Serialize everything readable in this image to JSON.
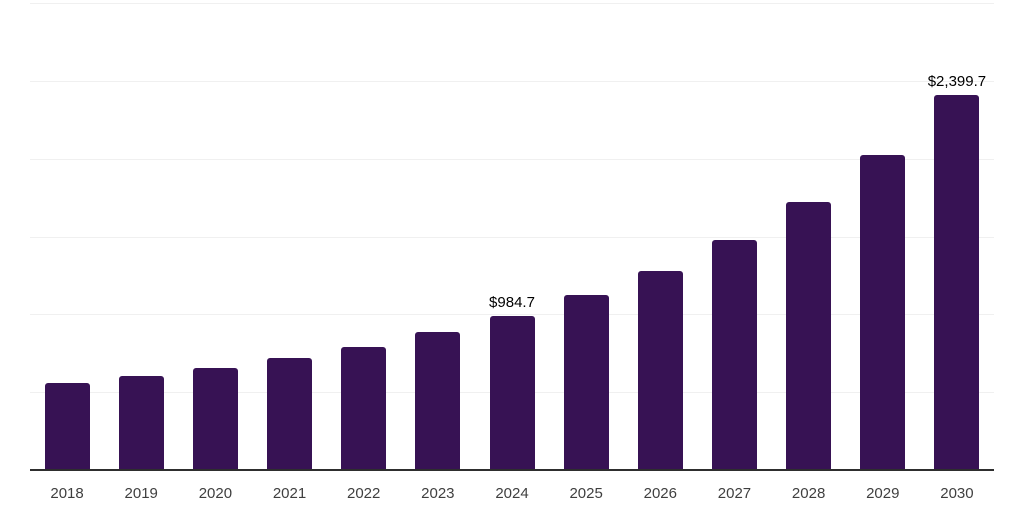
{
  "chart_data": {
    "type": "bar",
    "title": "",
    "xlabel": "",
    "ylabel": "",
    "categories": [
      "2018",
      "2019",
      "2020",
      "2021",
      "2022",
      "2023",
      "2024",
      "2025",
      "2026",
      "2027",
      "2028",
      "2029",
      "2030"
    ],
    "values": [
      550,
      600,
      650,
      715,
      785,
      880,
      984.7,
      1120,
      1275,
      1470,
      1715,
      2020,
      2399.7
    ],
    "labeled_points": [
      {
        "category": "2024",
        "label": "$984.7"
      },
      {
        "category": "2030",
        "label": "$2,399.7"
      }
    ],
    "ylim": [
      0,
      3000
    ],
    "gridline_step": 500,
    "grid": true,
    "legend": false,
    "bar_color": "#371254",
    "gridline_color": "#f0f0f0",
    "axis_line_color": "#2e2e2e",
    "tick_label_color": "#3f3f3f",
    "data_label_color": "#000000",
    "background_color": "#ffffff"
  }
}
